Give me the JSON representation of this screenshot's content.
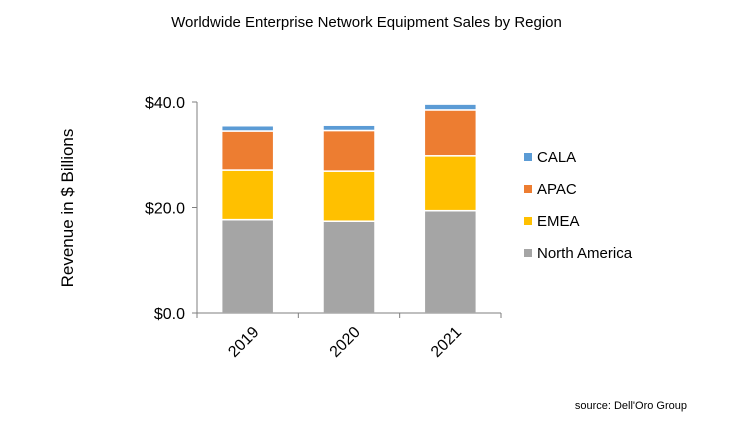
{
  "chart_data": {
    "type": "bar",
    "stacked": true,
    "title": "Worldwide Enterprise Network Equipment Sales by Region",
    "xlabel": "",
    "ylabel": "Revenue in $ Billions",
    "categories": [
      "2019",
      "2020",
      "2021"
    ],
    "ylim": [
      0,
      40
    ],
    "yticks": [
      "$0.0",
      "$20.0",
      "$40.0"
    ],
    "ytick_values": [
      0,
      20,
      40
    ],
    "grid": false,
    "legend_position": "right",
    "series": [
      {
        "name": "North America",
        "color": "#A5A5A5",
        "values": [
          17.7,
          17.4,
          19.4
        ]
      },
      {
        "name": "EMEA",
        "color": "#FFC000",
        "values": [
          9.4,
          9.5,
          10.4
        ]
      },
      {
        "name": "APAC",
        "color": "#ED7D31",
        "values": [
          7.4,
          7.7,
          8.7
        ]
      },
      {
        "name": "CALA",
        "color": "#5B9BD5",
        "values": [
          1.0,
          1.0,
          1.1
        ]
      }
    ]
  },
  "source": "source: Dell'Oro Group"
}
